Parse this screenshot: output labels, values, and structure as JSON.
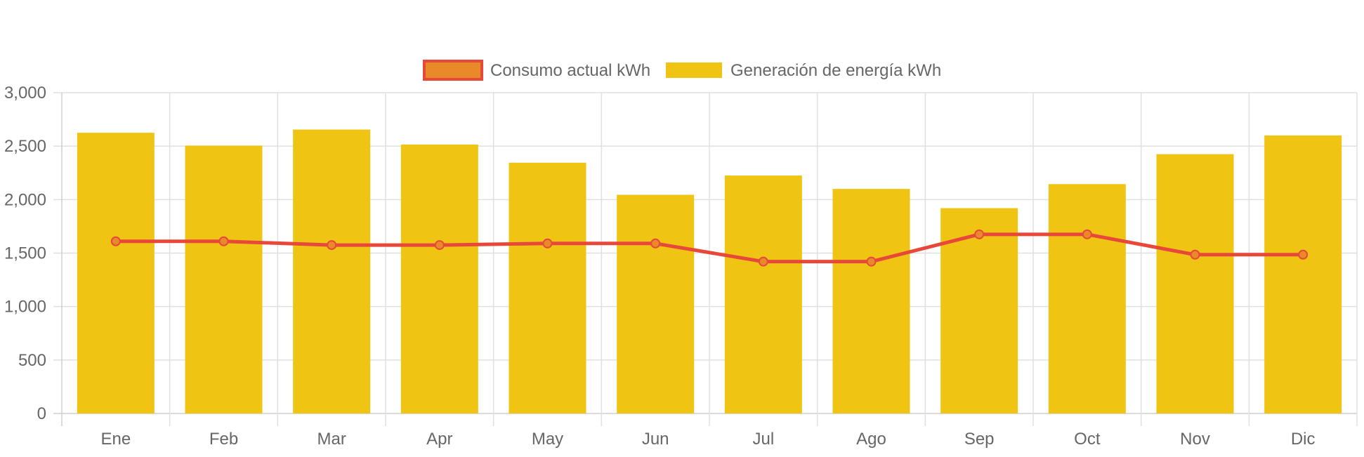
{
  "chart_data": {
    "type": "bar",
    "categories": [
      "Ene",
      "Feb",
      "Mar",
      "Apr",
      "May",
      "Jun",
      "Jul",
      "Ago",
      "Sep",
      "Oct",
      "Nov",
      "Dic"
    ],
    "series": [
      {
        "name": "Consumo actual kWh",
        "type": "line",
        "color": "#e8483a",
        "point_fill": "#e8892a",
        "values": [
          1610,
          1610,
          1575,
          1575,
          1590,
          1590,
          1420,
          1420,
          1675,
          1675,
          1485,
          1485
        ]
      },
      {
        "name": "Generación de energía kWh",
        "type": "bar",
        "color": "#f0c413",
        "values": [
          2625,
          2505,
          2655,
          2515,
          2345,
          2045,
          2225,
          2100,
          1920,
          2145,
          2425,
          2600
        ]
      }
    ],
    "ylim": [
      0,
      3000
    ],
    "yticks": [
      "0",
      "500",
      "1,000",
      "1,500",
      "2,000",
      "2,500",
      "3,000"
    ],
    "ytick_values": [
      0,
      500,
      1000,
      1500,
      2000,
      2500,
      3000
    ],
    "grid": true,
    "legend_position": "top-center",
    "title": "",
    "xlabel": "",
    "ylabel": ""
  }
}
